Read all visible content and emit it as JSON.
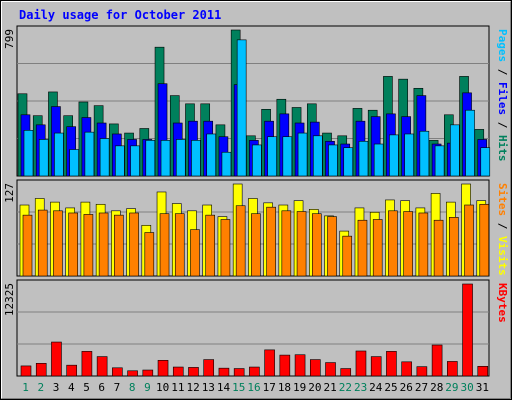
{
  "title": "Daily usage for October 2011",
  "colors": {
    "background": "#c0c0c0",
    "plot_bg": "#c0c0c0",
    "title_text": "#0000ff",
    "axis_text": "#000000",
    "grid": "#808080",
    "hits": "#00805c",
    "files": "#0000ff",
    "pages": "#00c0ff",
    "visits": "#ffff00",
    "sites": "#ff8000",
    "kbytes": "#ff0000",
    "weekend_day": "#00805c",
    "weekday_day": "#000000",
    "separator": "#000000"
  },
  "panels": {
    "top": {
      "max_label": "799",
      "legend": [
        {
          "text": "Pages",
          "color": "#00c0ff"
        },
        {
          "text": " / ",
          "color": "#000000"
        },
        {
          "text": "Files",
          "color": "#0000ff"
        },
        {
          "text": " / ",
          "color": "#000000"
        },
        {
          "text": "Hits",
          "color": "#00805c"
        }
      ]
    },
    "middle": {
      "max_label": "127",
      "legend": [
        {
          "text": "Sites",
          "color": "#ff8000"
        },
        {
          "text": " / ",
          "color": "#000000"
        },
        {
          "text": "Visits",
          "color": "#ffff00"
        }
      ]
    },
    "bottom": {
      "max_label": "12325",
      "legend": [
        {
          "text": "KBytes",
          "color": "#ff0000"
        }
      ]
    }
  },
  "chart_data": {
    "type": "bar",
    "categories": [
      "1",
      "2",
      "3",
      "4",
      "5",
      "6",
      "7",
      "8",
      "9",
      "10",
      "11",
      "12",
      "13",
      "14",
      "15",
      "16",
      "17",
      "18",
      "19",
      "20",
      "21",
      "22",
      "23",
      "24",
      "25",
      "26",
      "27",
      "28",
      "29",
      "30",
      "31"
    ],
    "weekend_days": [
      "1",
      "2",
      "8",
      "9",
      "15",
      "16",
      "22",
      "23",
      "29",
      "30"
    ],
    "series": [
      {
        "name": "Hits",
        "panel": "top",
        "ylim": [
          0,
          799
        ],
        "values": [
          450,
          330,
          460,
          330,
          405,
          385,
          285,
          235,
          260,
          705,
          440,
          395,
          395,
          280,
          799,
          220,
          365,
          420,
          375,
          395,
          235,
          220,
          370,
          360,
          545,
          530,
          480,
          195,
          335,
          545,
          255
        ]
      },
      {
        "name": "Files",
        "panel": "top",
        "ylim": [
          0,
          799
        ],
        "values": [
          335,
          280,
          380,
          270,
          320,
          290,
          230,
          200,
          200,
          505,
          290,
          300,
          300,
          215,
          500,
          195,
          300,
          340,
          290,
          295,
          190,
          175,
          300,
          325,
          340,
          325,
          440,
          175,
          180,
          455,
          200
        ]
      },
      {
        "name": "Pages",
        "panel": "top",
        "ylim": [
          0,
          799
        ],
        "values": [
          250,
          200,
          235,
          145,
          240,
          205,
          165,
          165,
          195,
          195,
          200,
          195,
          230,
          130,
          745,
          170,
          215,
          215,
          235,
          220,
          170,
          155,
          190,
          175,
          225,
          230,
          245,
          165,
          280,
          360,
          155
        ]
      },
      {
        "name": "Visits",
        "panel": "middle",
        "ylim": [
          0,
          127
        ],
        "values": [
          98,
          107,
          102,
          94,
          102,
          99,
          90,
          93,
          70,
          116,
          100,
          90,
          98,
          82,
          127,
          107,
          101,
          98,
          104,
          92,
          83,
          62,
          94,
          88,
          105,
          104,
          94,
          114,
          102,
          127,
          104
        ]
      },
      {
        "name": "Sites",
        "panel": "middle",
        "ylim": [
          0,
          127
        ],
        "values": [
          84,
          91,
          90,
          87,
          85,
          87,
          84,
          87,
          60,
          86,
          86,
          64,
          84,
          78,
          97,
          86,
          95,
          90,
          89,
          86,
          82,
          55,
          77,
          78,
          90,
          89,
          87,
          77,
          81,
          98,
          99
        ]
      },
      {
        "name": "KBytes",
        "panel": "bottom",
        "ylim": [
          0,
          12325
        ],
        "values": [
          1350,
          1700,
          4550,
          1450,
          3300,
          2600,
          1100,
          700,
          800,
          2100,
          1200,
          1150,
          2200,
          1050,
          1000,
          1200,
          3500,
          2800,
          2850,
          2200,
          1800,
          1000,
          3350,
          2600,
          3300,
          1900,
          1250,
          4150,
          1950,
          12325,
          1300
        ]
      }
    ]
  }
}
